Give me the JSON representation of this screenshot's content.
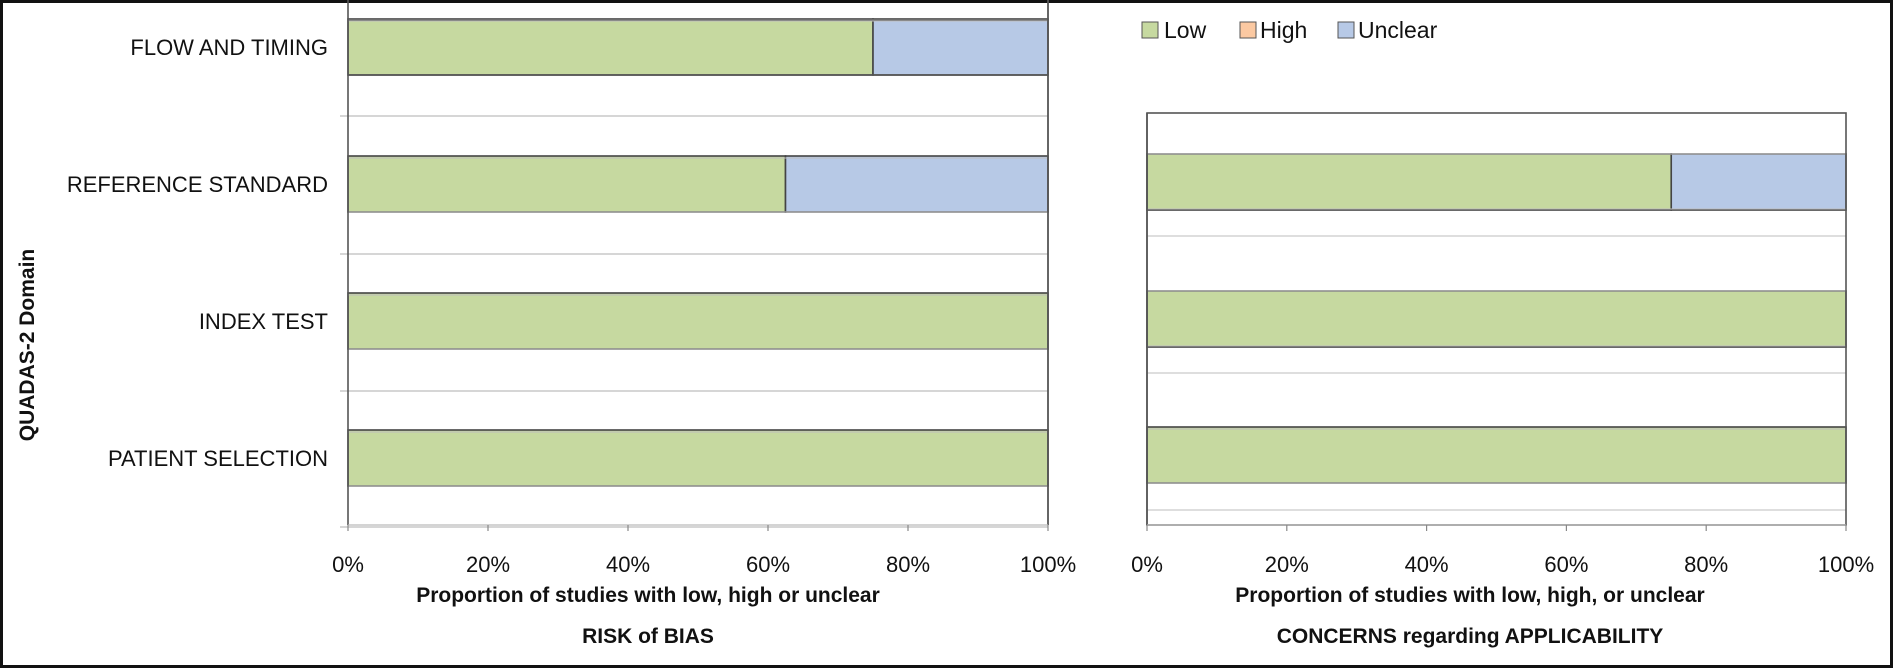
{
  "y_axis_title": "QUADAS-2 Domain",
  "legend": [
    {
      "label": "Low",
      "color": "#c6d9a0"
    },
    {
      "label": "High",
      "color": "#fbc9a2"
    },
    {
      "label": "Unclear",
      "color": "#b7c9e6"
    }
  ],
  "chart_data": [
    {
      "type": "bar",
      "orientation": "horizontal",
      "stacked": true,
      "categories": [
        "PATIENT SELECTION",
        "INDEX TEST",
        "REFERENCE STANDARD",
        "FLOW AND TIMING"
      ],
      "series": [
        {
          "name": "Low",
          "values": [
            100,
            100,
            62.5,
            75
          ]
        },
        {
          "name": "High",
          "values": [
            0,
            0,
            0,
            0
          ]
        },
        {
          "name": "Unclear",
          "values": [
            0,
            0,
            37.5,
            25
          ]
        }
      ],
      "xticks": [
        "0%",
        "20%",
        "40%",
        "60%",
        "80%",
        "100%"
      ],
      "xlim": [
        0,
        100
      ],
      "xlabel": [
        "Proportion of studies with low, high or unclear",
        "RISK of BIAS"
      ]
    },
    {
      "type": "bar",
      "orientation": "horizontal",
      "stacked": true,
      "categories": [
        "PATIENT SELECTION",
        "INDEX TEST",
        "REFERENCE STANDARD"
      ],
      "series": [
        {
          "name": "Low",
          "values": [
            100,
            100,
            75
          ]
        },
        {
          "name": "High",
          "values": [
            0,
            0,
            0
          ]
        },
        {
          "name": "Unclear",
          "values": [
            0,
            0,
            25
          ]
        }
      ],
      "xticks": [
        "0%",
        "20%",
        "40%",
        "60%",
        "80%",
        "100%"
      ],
      "xlim": [
        0,
        100
      ],
      "xlabel": [
        "Proportion of studies with low, high, or unclear",
        "CONCERNS regarding APPLICABILITY"
      ]
    }
  ]
}
